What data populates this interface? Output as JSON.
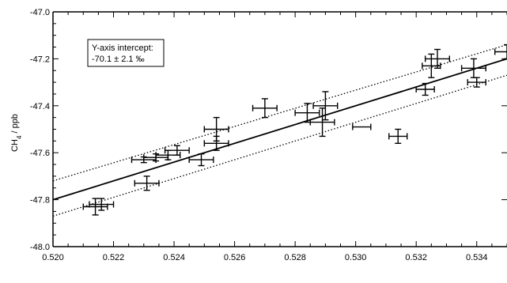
{
  "chart_data": {
    "type": "scatter",
    "title": "",
    "xlabel": "",
    "ylabel": "CH4 / ppb",
    "ylabel_main": "CH",
    "ylabel_sub": "4",
    "ylabel_rest": " / ppb",
    "xlim": [
      0.52,
      0.535
    ],
    "ylim": [
      -48.0,
      -47.0
    ],
    "x_ticks": [
      0.52,
      0.522,
      0.524,
      0.526,
      0.528,
      0.53,
      0.532,
      0.534
    ],
    "x_tick_labels": [
      "0.520",
      "0.522",
      "0.524",
      "0.526",
      "0.528",
      "0.530",
      "0.532",
      "0.534"
    ],
    "y_ticks": [
      -48.0,
      -47.8,
      -47.6,
      -47.4,
      -47.2,
      -47.0
    ],
    "y_tick_labels": [
      "-48.0",
      "-47.8",
      "-47.6",
      "-47.4",
      "-47.2",
      "-47.0"
    ],
    "annotation": [
      "Y-axis intercept:",
      "-70.1 ± 2.1 ‰"
    ],
    "grid": false,
    "points": [
      {
        "x": 0.5214,
        "y": -47.83,
        "xerr": 0.0004,
        "yerr": 0.035
      },
      {
        "x": 0.5216,
        "y": -47.82,
        "xerr": 0.0004,
        "yerr": 0.025
      },
      {
        "x": 0.523,
        "y": -47.63,
        "xerr": 0.0004,
        "yerr": 0.012
      },
      {
        "x": 0.5231,
        "y": -47.73,
        "xerr": 0.0004,
        "yerr": 0.03
      },
      {
        "x": 0.5234,
        "y": -47.62,
        "xerr": 0.0004,
        "yerr": 0.015
      },
      {
        "x": 0.5238,
        "y": -47.61,
        "xerr": 0.0004,
        "yerr": 0.02
      },
      {
        "x": 0.5241,
        "y": -47.59,
        "xerr": 0.0004,
        "yerr": 0.02
      },
      {
        "x": 0.5249,
        "y": -47.63,
        "xerr": 0.0004,
        "yerr": 0.025
      },
      {
        "x": 0.5254,
        "y": -47.5,
        "xerr": 0.0004,
        "yerr": 0.05
      },
      {
        "x": 0.5254,
        "y": -47.56,
        "xerr": 0.0004,
        "yerr": 0.03
      },
      {
        "x": 0.527,
        "y": -47.41,
        "xerr": 0.0004,
        "yerr": 0.04
      },
      {
        "x": 0.5284,
        "y": -47.43,
        "xerr": 0.0004,
        "yerr": 0.04
      },
      {
        "x": 0.5289,
        "y": -47.47,
        "xerr": 0.0004,
        "yerr": 0.06
      },
      {
        "x": 0.529,
        "y": -47.4,
        "xerr": 0.0004,
        "yerr": 0.06
      },
      {
        "x": 0.5302,
        "y": -47.49,
        "xerr": 0.0003,
        "yerr": 0.0
      },
      {
        "x": 0.5314,
        "y": -47.53,
        "xerr": 0.0003,
        "yerr": 0.03
      },
      {
        "x": 0.5323,
        "y": -47.33,
        "xerr": 0.0003,
        "yerr": 0.025
      },
      {
        "x": 0.5325,
        "y": -47.23,
        "xerr": 0.0003,
        "yerr": 0.05
      },
      {
        "x": 0.5327,
        "y": -47.2,
        "xerr": 0.0004,
        "yerr": 0.04
      },
      {
        "x": 0.5339,
        "y": -47.24,
        "xerr": 0.0004,
        "yerr": 0.04
      },
      {
        "x": 0.534,
        "y": -47.3,
        "xerr": 0.0003,
        "yerr": 0.02
      },
      {
        "x": 0.535,
        "y": -47.17,
        "xerr": 0.0004,
        "yerr": 0.03
      }
    ],
    "fit_line": {
      "x": [
        0.52,
        0.535
      ],
      "y": [
        -47.8,
        -47.2
      ]
    },
    "upper_band": {
      "x": [
        0.52,
        0.535
      ],
      "y": [
        -47.72,
        -47.14
      ]
    },
    "lower_band": {
      "x": [
        0.52,
        0.535
      ],
      "y": [
        -47.87,
        -47.27
      ]
    }
  }
}
